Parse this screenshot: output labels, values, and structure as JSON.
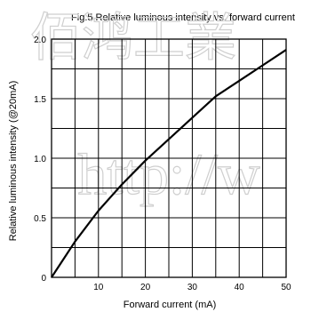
{
  "chart_data": {
    "type": "line",
    "title": "Fig.5 Relative luminous intensity vs. forward current",
    "xlabel": "Forward current (mA)",
    "ylabel": "Relative luminous intensity (@20mA)",
    "xlim": [
      0,
      50
    ],
    "ylim": [
      0,
      2.0
    ],
    "x_ticks": [
      10,
      20,
      30,
      40,
      50
    ],
    "x_tick_labels": [
      "10",
      "20",
      "30",
      "40",
      "50"
    ],
    "y_ticks": [
      0,
      0.5,
      1.0,
      1.5,
      2.0
    ],
    "y_tick_labels": [
      "0",
      "0.5",
      "1.0",
      "1.5",
      "2.0"
    ],
    "grid": true,
    "series": [
      {
        "x": [
          0,
          2,
          5,
          10,
          15,
          20,
          25,
          30,
          35,
          40,
          45,
          50
        ],
        "y": [
          0,
          0.12,
          0.3,
          0.56,
          0.78,
          0.98,
          1.16,
          1.34,
          1.52,
          1.65,
          1.78,
          1.91
        ]
      }
    ]
  },
  "watermark": {
    "chinese": "佰鸿工業",
    "url": "http://w"
  },
  "colors": {
    "axis": "#000000",
    "line": "#000000",
    "watermark": "#cfcfcf"
  }
}
